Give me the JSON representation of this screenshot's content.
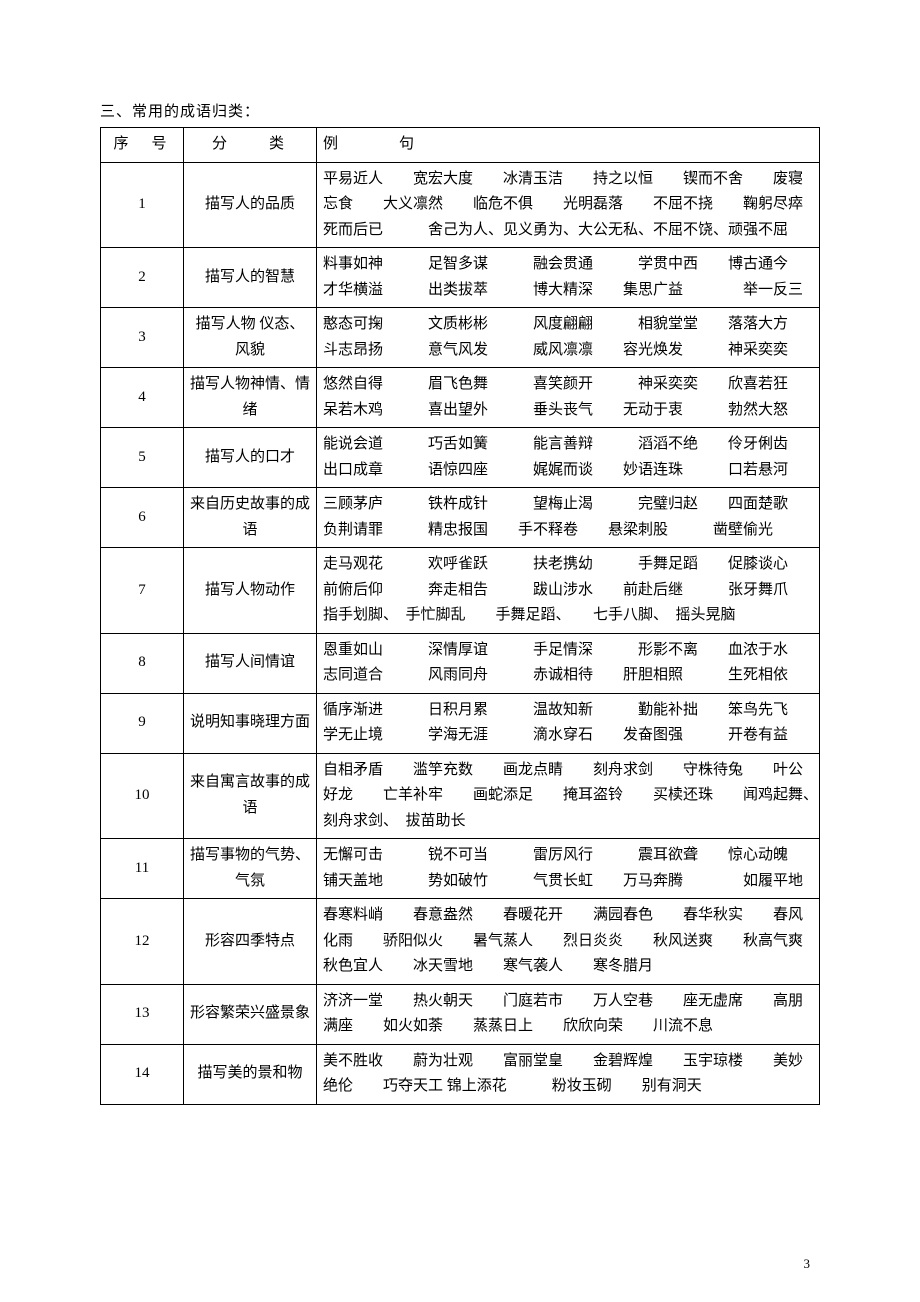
{
  "title": "三、常用的成语归类：",
  "headers": {
    "num": "序　号",
    "category": "分　　类",
    "example": "例　　　句"
  },
  "rows": [
    {
      "num": "1",
      "category": "描写人的品质",
      "examples": "平易近人　　宽宏大度　　冰清玉洁　　持之以恒　　锲而不舍　　废寝忘食　　大义凛然　　临危不俱　　光明磊落　　不屈不挠　　鞠躬尽瘁　　死而后已　　　舍己为人、见义勇为、大公无私、不屈不饶、顽强不屈"
    },
    {
      "num": "2",
      "category": "描写人的智慧",
      "examples": "料事如神　　　足智多谋　　　融会贯通　　　学贯中西　　博古通今　　　才华横溢　　　出类拔萃　　　博大精深　　集思广益　　　　举一反三"
    },
    {
      "num": "3",
      "category": "描写人物\n仪态、风貌",
      "examples": "憨态可掬　　　文质彬彬　　　风度翩翩　　　相貌堂堂　　落落大方　　　斗志昂扬　　　意气风发　　　威风凛凛　　容光焕发　　　神采奕奕"
    },
    {
      "num": "4",
      "category": "描写人物神情、情绪",
      "examples": "悠然自得　　　眉飞色舞　　　喜笑颜开　　　神采奕奕　　欣喜若狂　　　呆若木鸡　　　喜出望外　　　垂头丧气　　无动于衷　　　勃然大怒"
    },
    {
      "num": "5",
      "category": "描写人的口才",
      "examples": "能说会道　　　巧舌如簧　　　能言善辩　　　滔滔不绝　　伶牙俐齿　　　出口成章　　　语惊四座　　　娓娓而谈　　妙语连珠　　　口若悬河"
    },
    {
      "num": "6",
      "category": "来自历史故事的成语",
      "examples": "三顾茅庐　　　铁杵成针　　　望梅止渴　　　完璧归赵　　四面楚歌　　　负荆请罪　　　精忠报国　　手不释卷　　悬梁刺股　　　凿壁偷光"
    },
    {
      "num": "7",
      "category": "描写人物动作",
      "examples": "走马观花　　　欢呼雀跃　　　扶老携幼　　　手舞足蹈　　促膝谈心　　　前俯后仰　　　奔走相告　　　跋山涉水　　前赴后继　　　张牙舞爪　　　指手划脚、　手忙脚乱　　手舞足蹈、　　七手八脚、　摇头晃脑"
    },
    {
      "num": "8",
      "category": "描写人间情谊",
      "examples": "恩重如山　　　深情厚谊　　　手足情深　　　形影不离　　血浓于水　　　志同道合　　　风雨同舟　　　赤诚相待　　肝胆相照　　　生死相依"
    },
    {
      "num": "9",
      "category": "说明知事晓理方面",
      "examples": "循序渐进　　　日积月累　　　温故知新　　　勤能补拙　　笨鸟先飞　　　学无止境　　　学海无涯　　　滴水穿石　　发奋图强　　　开卷有益"
    },
    {
      "num": "10",
      "category": "来自寓言故事的成语",
      "examples": "自相矛盾　　滥竽充数　　画龙点睛　　刻舟求剑　　守株待兔　　叶公好龙　　亡羊补牢　　画蛇添足　　掩耳盗铃　　买椟还珠　　闻鸡起舞、　刻舟求剑、　拔苗助长"
    },
    {
      "num": "11",
      "category": "描写事物的气势、气氛",
      "examples": "无懈可击　　　锐不可当　　　雷厉风行　　　震耳欲聋　　惊心动魄　　　铺天盖地　　　势如破竹　　　气贯长虹　　万马奔腾　　　　如履平地"
    },
    {
      "num": "12",
      "category": "形容四季特点",
      "examples": "春寒料峭　　春意盎然　　春暖花开　　满园春色　　春华秋实　　春风化雨　　骄阳似火　　暑气蒸人　　烈日炎炎　　秋风送爽　　秋高气爽　　秋色宜人　　冰天雪地　　寒气袭人　　寒冬腊月"
    },
    {
      "num": "13",
      "category": "形容繁荣兴盛景象",
      "examples": "济济一堂　　热火朝天　　门庭若市　　万人空巷　　座无虚席　　高朋满座　　如火如荼　　蒸蒸日上　　欣欣向荣　　川流不息"
    },
    {
      "num": "14",
      "category": "描写美的景和物",
      "examples": "美不胜收　　蔚为壮观　　富丽堂皇　　金碧辉煌　　玉宇琼楼　　美妙绝伦　　巧夺天工 锦上添花　　　粉妆玉砌　　别有洞天"
    }
  ],
  "page_number": "3"
}
